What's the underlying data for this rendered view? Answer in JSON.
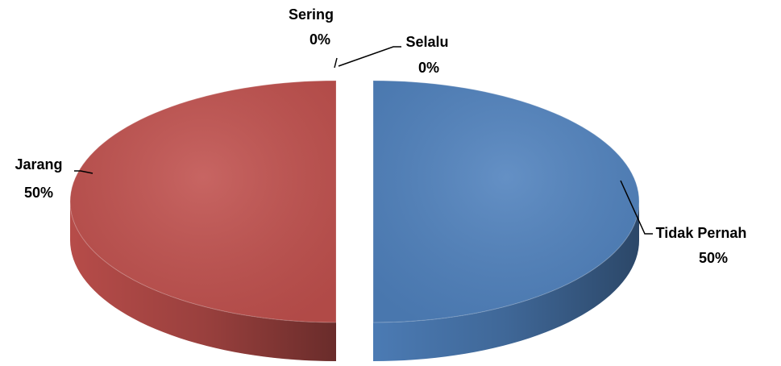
{
  "chart_data": {
    "type": "pie",
    "categories": [
      "Tidak Pernah",
      "Jarang",
      "Sering",
      "Selalu"
    ],
    "values": [
      50,
      50,
      0,
      0
    ],
    "value_labels": [
      "50%",
      "50%",
      "0%",
      "0%"
    ],
    "colors": [
      "#4f81bd",
      "#c0504d",
      "#9bbb59",
      "#8064a2"
    ]
  }
}
